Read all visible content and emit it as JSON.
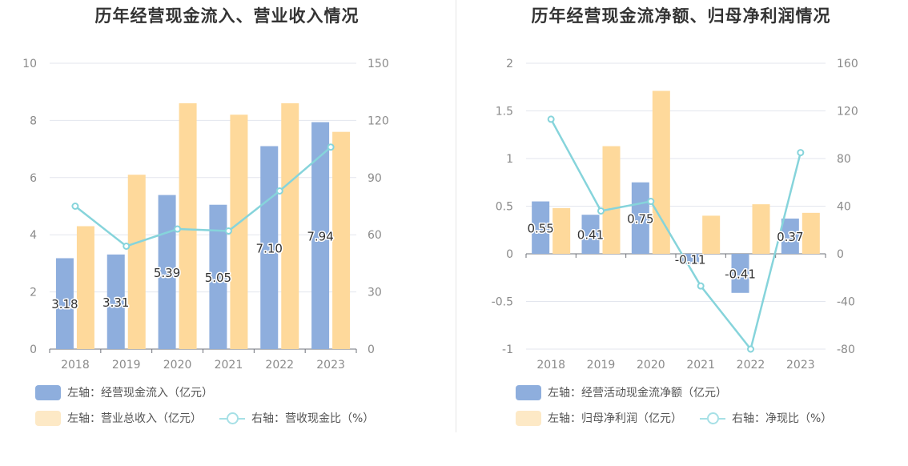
{
  "chart_data": [
    {
      "type": "bar",
      "title": "历年经营现金流入、营业收入情况",
      "categories": [
        "2018",
        "2019",
        "2020",
        "2021",
        "2022",
        "2023"
      ],
      "y_left": {
        "min": 0,
        "max": 10,
        "ticks": [
          "0",
          "2",
          "4",
          "6",
          "8",
          "10"
        ]
      },
      "y_right": {
        "min": 0,
        "max": 150,
        "ticks": [
          "0",
          "30",
          "60",
          "90",
          "120",
          "150"
        ]
      },
      "series": [
        {
          "name": "左轴：经营现金流入（亿元）",
          "type": "bar",
          "axis": "left",
          "color": "#8eaedd",
          "values": [
            3.18,
            3.31,
            5.39,
            5.05,
            7.1,
            7.94
          ],
          "labels": [
            "3.18",
            "3.31",
            "5.39",
            "5.05",
            "7.10",
            "7.94"
          ]
        },
        {
          "name": "左轴：营业总收入（亿元）",
          "type": "bar",
          "axis": "left",
          "color": "#fed99b",
          "values": [
            4.3,
            6.1,
            8.6,
            8.2,
            8.6,
            7.6
          ]
        },
        {
          "name": "右轴：营收现金比（%）",
          "type": "line",
          "axis": "right",
          "color": "#86d4db",
          "values": [
            75,
            54,
            63,
            62,
            83,
            106
          ]
        }
      ],
      "legend_position": "bottom-left",
      "grid": true
    },
    {
      "type": "bar",
      "title": "历年经营现金流净额、归母净利润情况",
      "categories": [
        "2018",
        "2019",
        "2020",
        "2021",
        "2022",
        "2023"
      ],
      "y_left": {
        "min": -1,
        "max": 2,
        "ticks": [
          "-1",
          "-0.5",
          "0",
          "0.5",
          "1",
          "1.5",
          "2"
        ]
      },
      "y_right": {
        "min": -80,
        "max": 160,
        "ticks": [
          "-80",
          "-40",
          "0",
          "40",
          "80",
          "120",
          "160"
        ]
      },
      "series": [
        {
          "name": "左轴：经营活动现金流净额（亿元）",
          "type": "bar",
          "axis": "left",
          "color": "#8eaedd",
          "values": [
            0.55,
            0.41,
            0.75,
            -0.11,
            -0.41,
            0.37
          ],
          "labels": [
            "0.55",
            "0.41",
            "0.75",
            "-0.11",
            "-0.41",
            "0.37"
          ]
        },
        {
          "name": "左轴：归母净利润（亿元）",
          "type": "bar",
          "axis": "left",
          "color": "#fed99b",
          "values": [
            0.48,
            1.13,
            1.71,
            0.4,
            0.52,
            0.43
          ]
        },
        {
          "name": "右轴：净现比（%）",
          "type": "line",
          "axis": "right",
          "color": "#86d4db",
          "values": [
            113,
            36,
            44,
            -27,
            -80,
            85
          ]
        }
      ],
      "legend_position": "bottom-left",
      "grid": true
    }
  ]
}
